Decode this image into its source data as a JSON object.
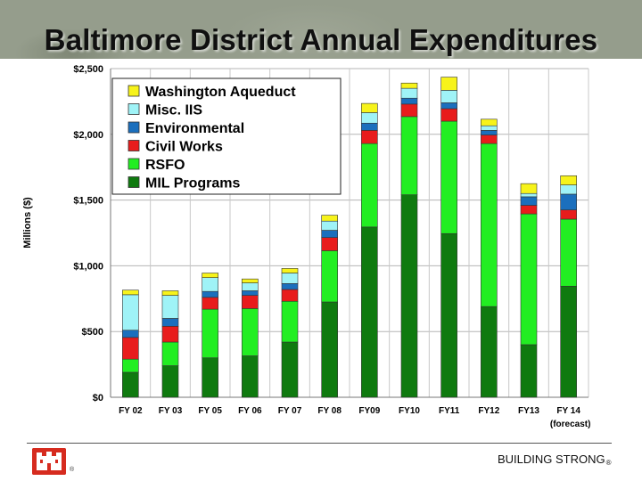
{
  "title": "Baltimore District Annual Expenditures",
  "footer": {
    "slogan": "BUILDING STRONG",
    "registered_mark": "®",
    "logo_registered_mark": "®"
  },
  "colors": {
    "mil_programs": "#0f7a0f",
    "rsfo": "#22ee22",
    "civil_works": "#e81c1c",
    "environmental": "#1b6fbd",
    "misc_iis": "#9ff3f7",
    "washington_aqueduct": "#f7f31a"
  },
  "chart_data": {
    "type": "bar",
    "stacked": true,
    "title": "Baltimore District Annual Expenditures",
    "xlabel": "",
    "ylabel": "Millions ($)",
    "ylim": [
      0,
      2500
    ],
    "yticks": [
      0,
      500,
      1000,
      1500,
      2000,
      2500
    ],
    "ytick_labels": [
      "$0",
      "$500",
      "$1,000",
      "$1,500",
      "$2,000",
      "$2,500"
    ],
    "grid": true,
    "legend_position": "top-left",
    "categories": [
      "FY 02",
      "FY 03",
      "FY 05",
      "FY 06",
      "FY 07",
      "FY 08",
      "FY09",
      "FY10",
      "FY11",
      "FY12",
      "FY13",
      "FY 14"
    ],
    "category_annotations": {
      "FY 14": "(forecast)"
    },
    "series": [
      {
        "name": "MIL Programs",
        "color": "#0f7a0f",
        "values": [
          190,
          240,
          300,
          315,
          420,
          725,
          1295,
          1540,
          1245,
          690,
          400,
          845
        ]
      },
      {
        "name": "RSFO",
        "color": "#22ee22",
        "values": [
          100,
          180,
          370,
          360,
          310,
          390,
          635,
          595,
          855,
          1240,
          995,
          510
        ]
      },
      {
        "name": "Civil Works",
        "color": "#e81c1c",
        "values": [
          165,
          120,
          90,
          100,
          90,
          100,
          100,
          95,
          95,
          65,
          65,
          70
        ]
      },
      {
        "name": "Environmental",
        "color": "#1b6fbd",
        "values": [
          55,
          60,
          45,
          35,
          45,
          55,
          55,
          45,
          45,
          35,
          65,
          120
        ]
      },
      {
        "name": "Misc. IIS",
        "color": "#9ff3f7",
        "values": [
          270,
          175,
          105,
          60,
          80,
          70,
          80,
          75,
          95,
          35,
          25,
          70
        ]
      },
      {
        "name": "Washington Aqueduct",
        "color": "#f7f31a",
        "values": [
          35,
          35,
          35,
          30,
          35,
          45,
          70,
          40,
          100,
          50,
          75,
          70
        ]
      }
    ]
  }
}
